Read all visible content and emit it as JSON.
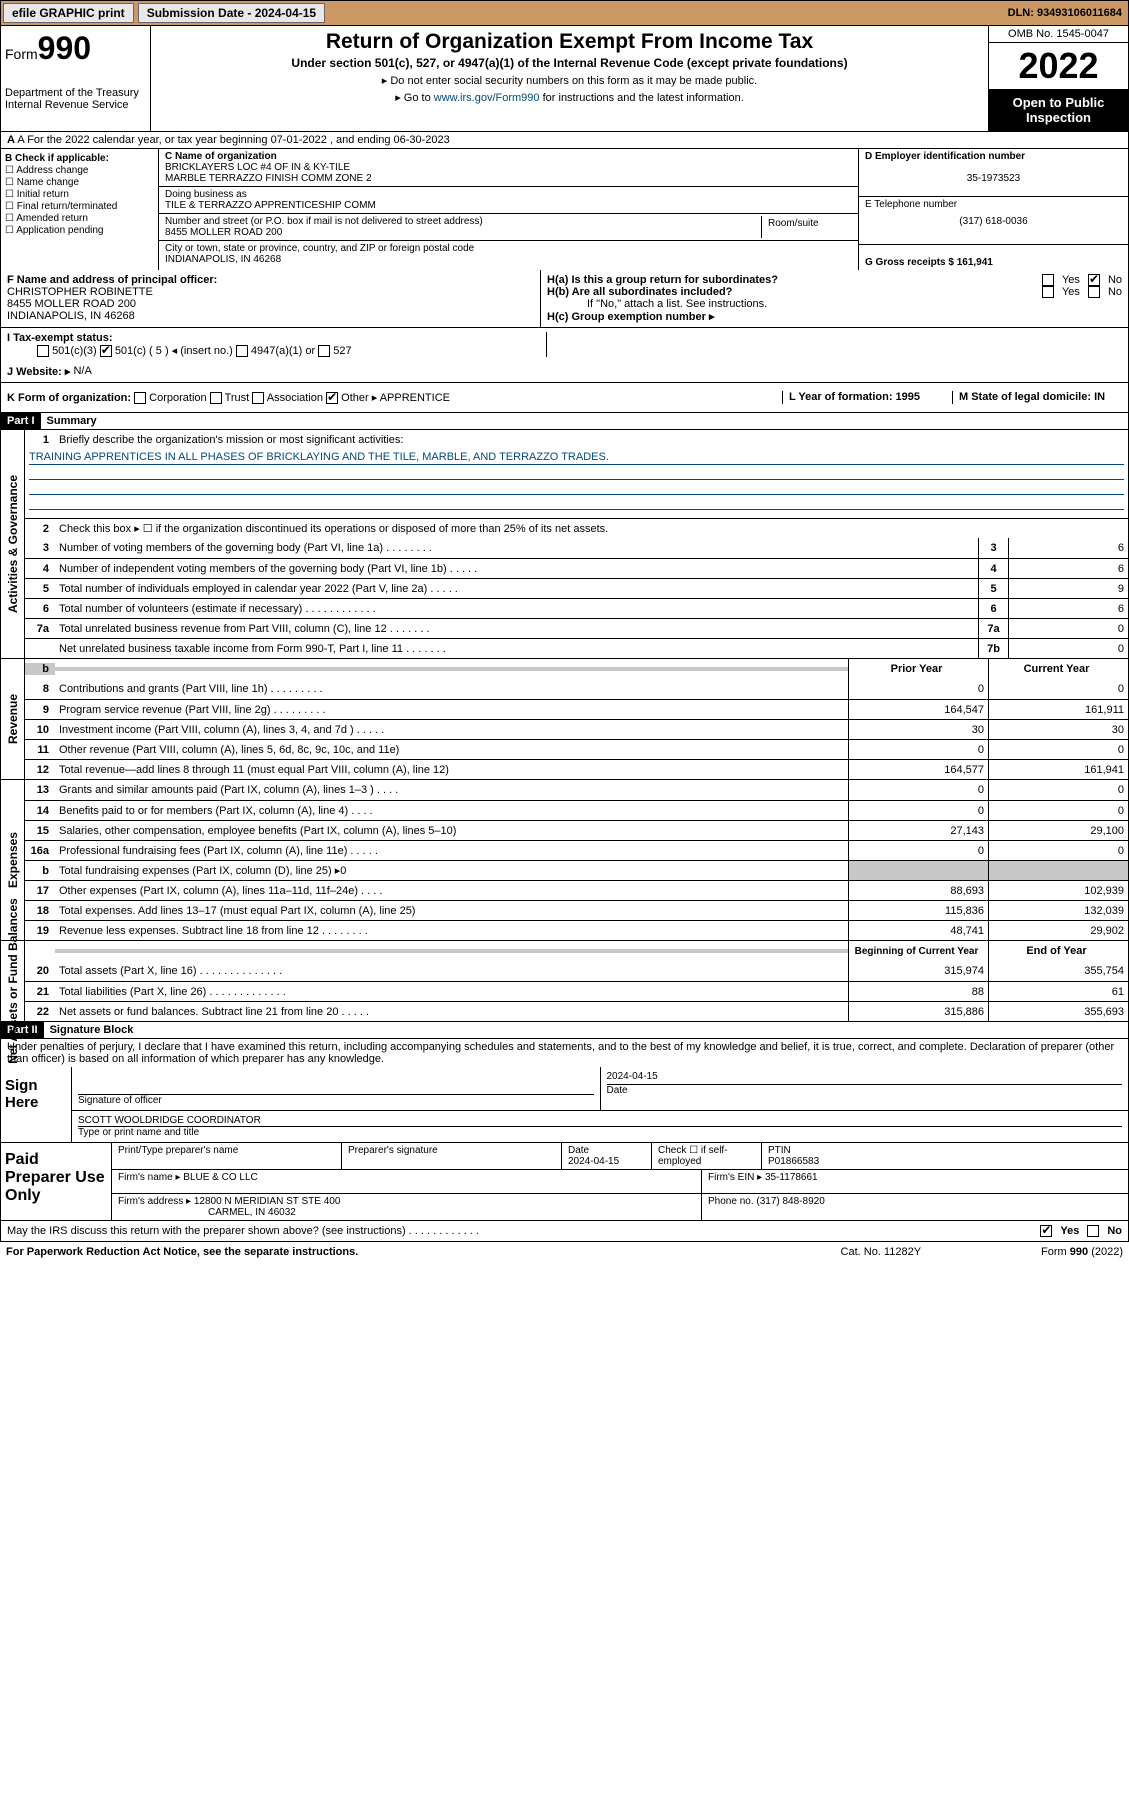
{
  "topbar": {
    "efile": "efile GRAPHIC print",
    "subdate_label": "Submission Date - 2024-04-15",
    "dln": "DLN: 93493106011684"
  },
  "header": {
    "form": "Form",
    "formnum": "990",
    "dept": "Department of the Treasury\nInternal Revenue Service",
    "title": "Return of Organization Exempt From Income Tax",
    "sub": "Under section 501(c), 527, or 4947(a)(1) of the Internal Revenue Code (except private foundations)",
    "note1": "▸ Do not enter social security numbers on this form as it may be made public.",
    "note2_pre": "▸ Go to ",
    "note2_link": "www.irs.gov/Form990",
    "note2_post": " for instructions and the latest information.",
    "omb": "OMB No. 1545-0047",
    "year": "2022",
    "open": "Open to Public Inspection"
  },
  "row_a": "A For the 2022 calendar year, or tax year beginning 07-01-2022   , and ending 06-30-2023",
  "section_b": {
    "hdr": "B Check if applicable:",
    "opts": [
      "Address change",
      "Name change",
      "Initial return",
      "Final return/terminated",
      "Amended return",
      "Application pending"
    ]
  },
  "section_c": {
    "name_lbl": "C Name of organization",
    "name1": "BRICKLAYERS LOC #4 OF IN & KY-TILE",
    "name2": "MARBLE TERRAZZO FINISH COMM ZONE 2",
    "dba_lbl": "Doing business as",
    "dba": "TILE & TERRAZZO APPRENTICESHIP COMM",
    "addr_lbl": "Number and street (or P.O. box if mail is not delivered to street address)",
    "room_lbl": "Room/suite",
    "addr": "8455 MOLLER ROAD 200",
    "city_lbl": "City or town, state or province, country, and ZIP or foreign postal code",
    "city": "INDIANAPOLIS, IN  46268"
  },
  "section_d": {
    "ein_lbl": "D Employer identification number",
    "ein": "35-1973523",
    "tel_lbl": "E Telephone number",
    "tel": "(317) 618-0036",
    "gross_lbl": "G Gross receipts $ 161,941"
  },
  "section_f": {
    "lbl": "F Name and address of principal officer:",
    "name": "CHRISTOPHER ROBINETTE",
    "addr1": "8455 MOLLER ROAD 200",
    "addr2": "INDIANAPOLIS, IN  46268"
  },
  "section_h": {
    "ha": "H(a)  Is this a group return for subordinates?",
    "hb": "H(b)  Are all subordinates included?",
    "hb_note": "If \"No,\" attach a list. See instructions.",
    "hc": "H(c)  Group exemption number ▸",
    "yes": "Yes",
    "no": "No"
  },
  "row_i": {
    "lbl": "I   Tax-exempt status:",
    "c3": "501(c)(3)",
    "c5": "501(c) ( 5 ) ◂ (insert no.)",
    "a1": "4947(a)(1) or",
    "s527": "527"
  },
  "row_j": {
    "lbl": "J   Website: ▸",
    "val": "N/A"
  },
  "row_k": {
    "lbl": "K Form of organization:",
    "opts": [
      "Corporation",
      "Trust",
      "Association",
      "Other ▸"
    ],
    "other": "APPRENTICE",
    "l_lbl": "L Year of formation: 1995",
    "m_lbl": "M State of legal domicile: IN"
  },
  "part1": {
    "hdr": "Part I",
    "title": "Summary"
  },
  "summary": {
    "gov_label": "Activities & Governance",
    "rev_label": "Revenue",
    "exp_label": "Expenses",
    "net_label": "Net Assets or Fund Balances",
    "line1": "Briefly describe the organization's mission or most significant activities:",
    "mission": "TRAINING APPRENTICES IN ALL PHASES OF BRICKLAYING AND THE TILE, MARBLE, AND TERRAZZO TRADES.",
    "line2": "Check this box ▸ ☐  if the organization discontinued its operations or disposed of more than 25% of its net assets.",
    "lines_gov": [
      {
        "n": "3",
        "d": "Number of voting members of the governing body (Part VI, line 1a)   .   .   .   .   .   .   .   .",
        "box": "3",
        "v": "6"
      },
      {
        "n": "4",
        "d": "Number of independent voting members of the governing body (Part VI, line 1b)  .   .   .   .   .",
        "box": "4",
        "v": "6"
      },
      {
        "n": "5",
        "d": "Total number of individuals employed in calendar year 2022 (Part V, line 2a)   .   .   .   .   .",
        "box": "5",
        "v": "9"
      },
      {
        "n": "6",
        "d": "Total number of volunteers (estimate if necessary)   .   .   .   .   .   .   .   .   .   .   .   .",
        "box": "6",
        "v": "6"
      },
      {
        "n": "7a",
        "d": "Total unrelated business revenue from Part VIII, column (C), line 12  .   .   .   .   .   .   .",
        "box": "7a",
        "v": "0"
      },
      {
        "n": "",
        "d": "Net unrelated business taxable income from Form 990-T, Part I, line 11  .   .   .   .   .   .   .",
        "box": "7b",
        "v": "0"
      }
    ],
    "prior_hdr": "Prior Year",
    "curr_hdr": "Current Year",
    "begin_hdr": "Beginning of Current Year",
    "end_hdr": "End of Year",
    "lines_rev": [
      {
        "n": "8",
        "d": "Contributions and grants (Part VIII, line 1h)   .   .   .   .   .   .   .   .   .",
        "p": "0",
        "c": "0"
      },
      {
        "n": "9",
        "d": "Program service revenue (Part VIII, line 2g)   .   .   .   .   .   .   .   .   .",
        "p": "164,547",
        "c": "161,911"
      },
      {
        "n": "10",
        "d": "Investment income (Part VIII, column (A), lines 3, 4, and 7d )   .   .   .   .   .",
        "p": "30",
        "c": "30"
      },
      {
        "n": "11",
        "d": "Other revenue (Part VIII, column (A), lines 5, 6d, 8c, 9c, 10c, and 11e)",
        "p": "0",
        "c": "0"
      },
      {
        "n": "12",
        "d": "Total revenue—add lines 8 through 11 (must equal Part VIII, column (A), line 12)",
        "p": "164,577",
        "c": "161,941"
      }
    ],
    "lines_exp": [
      {
        "n": "13",
        "d": "Grants and similar amounts paid (Part IX, column (A), lines 1–3 )   .   .   .   .",
        "p": "0",
        "c": "0"
      },
      {
        "n": "14",
        "d": "Benefits paid to or for members (Part IX, column (A), line 4)   .   .   .   .",
        "p": "0",
        "c": "0"
      },
      {
        "n": "15",
        "d": "Salaries, other compensation, employee benefits (Part IX, column (A), lines 5–10)",
        "p": "27,143",
        "c": "29,100"
      },
      {
        "n": "16a",
        "d": "Professional fundraising fees (Part IX, column (A), line 11e)   .   .   .   .   .",
        "p": "0",
        "c": "0"
      },
      {
        "n": "b",
        "d": "Total fundraising expenses (Part IX, column (D), line 25) ▸0",
        "p": "",
        "c": "",
        "grey": true
      },
      {
        "n": "17",
        "d": "Other expenses (Part IX, column (A), lines 11a–11d, 11f–24e)   .   .   .   .",
        "p": "88,693",
        "c": "102,939"
      },
      {
        "n": "18",
        "d": "Total expenses. Add lines 13–17 (must equal Part IX, column (A), line 25)",
        "p": "115,836",
        "c": "132,039"
      },
      {
        "n": "19",
        "d": "Revenue less expenses. Subtract line 18 from line 12  .   .   .   .   .   .   .   .",
        "p": "48,741",
        "c": "29,902"
      }
    ],
    "lines_net": [
      {
        "n": "20",
        "d": "Total assets (Part X, line 16)  .   .   .   .   .   .   .   .   .   .   .   .   .   .",
        "p": "315,974",
        "c": "355,754"
      },
      {
        "n": "21",
        "d": "Total liabilities (Part X, line 26)  .   .   .   .   .   .   .   .   .   .   .   .   .",
        "p": "88",
        "c": "61"
      },
      {
        "n": "22",
        "d": "Net assets or fund balances. Subtract line 21 from line 20   .   .   .   .   .",
        "p": "315,886",
        "c": "355,693"
      }
    ]
  },
  "part2": {
    "hdr": "Part II",
    "title": "Signature Block"
  },
  "penalty": "Under penalties of perjury, I declare that I have examined this return, including accompanying schedules and statements, and to the best of my knowledge and belief, it is true, correct, and complete. Declaration of preparer (other than officer) is based on all information of which preparer has any knowledge.",
  "sign": {
    "here": "Sign Here",
    "sig_lbl": "Signature of officer",
    "date_lbl": "Date",
    "date": "2024-04-15",
    "name": "SCOTT WOOLDRIDGE  COORDINATOR",
    "name_lbl": "Type or print name and title"
  },
  "paid": {
    "hdr": "Paid Preparer Use Only",
    "prep_lbl": "Print/Type preparer's name",
    "sig_lbl": "Preparer's signature",
    "date_lbl": "Date",
    "date": "2024-04-15",
    "check_lbl": "Check ☐ if self-employed",
    "ptin_lbl": "PTIN",
    "ptin": "P01866583",
    "firm_lbl": "Firm's name   ▸",
    "firm": "BLUE & CO LLC",
    "ein_lbl": "Firm's EIN ▸",
    "ein": "35-1178661",
    "addr_lbl": "Firm's address ▸",
    "addr1": "12800 N MERIDIAN ST STE 400",
    "addr2": "CARMEL, IN  46032",
    "phone_lbl": "Phone no. (317) 848-8920"
  },
  "may_discuss": "May the IRS discuss this return with the preparer shown above? (see instructions)   .   .   .   .   .   .   .   .   .   .   .   .",
  "footer": {
    "pra": "For Paperwork Reduction Act Notice, see the separate instructions.",
    "cat": "Cat. No. 11282Y",
    "form": "Form 990 (2022)"
  }
}
